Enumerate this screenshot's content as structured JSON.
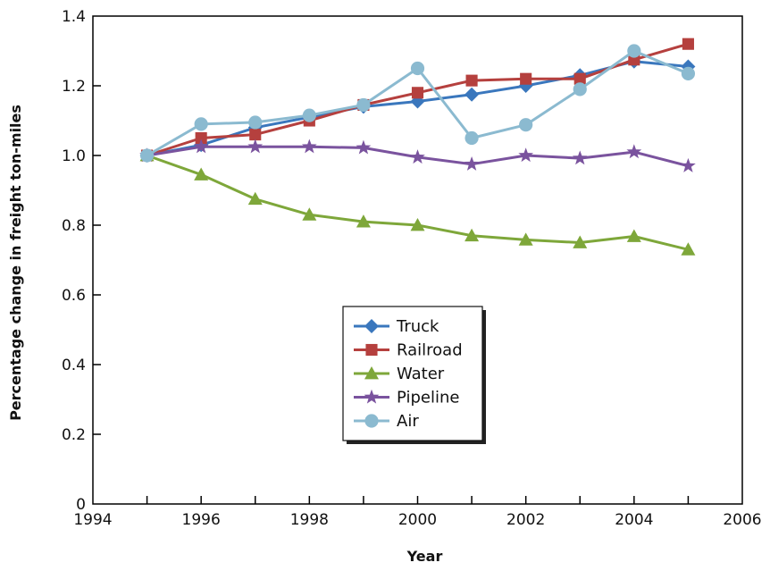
{
  "chart_data": {
    "type": "line",
    "title": "",
    "xlabel": "Year",
    "ylabel": "Percentage change in freight ton-miles",
    "xlim": [
      1994,
      2006
    ],
    "ylim": [
      0,
      1.4
    ],
    "x_ticks": [
      "1994",
      "1996",
      "1998",
      "2000",
      "2002",
      "2004",
      "2006"
    ],
    "y_ticks": [
      "0",
      "0.2",
      "0.4",
      "0.6",
      "0.8",
      "1.0",
      "1.2",
      "1.4"
    ],
    "grid": false,
    "legend_position": "center",
    "x": [
      1995,
      1996,
      1997,
      1998,
      1999,
      2000,
      2001,
      2002,
      2003,
      2004,
      2005
    ],
    "series": [
      {
        "name": "Truck",
        "color": "#3a77bd",
        "marker": "diamond",
        "values": [
          1.0,
          1.03,
          1.08,
          1.11,
          1.14,
          1.155,
          1.175,
          1.2,
          1.23,
          1.27,
          1.255
        ]
      },
      {
        "name": "Railroad",
        "color": "#b5403e",
        "marker": "square",
        "values": [
          1.0,
          1.05,
          1.06,
          1.1,
          1.145,
          1.18,
          1.215,
          1.22,
          1.22,
          1.275,
          1.32
        ]
      },
      {
        "name": "Water",
        "color": "#7ea73a",
        "marker": "triangle",
        "values": [
          1.0,
          0.945,
          0.875,
          0.83,
          0.81,
          0.8,
          0.77,
          0.758,
          0.75,
          0.768,
          0.73
        ]
      },
      {
        "name": "Pipeline",
        "color": "#7a539e",
        "marker": "star",
        "values": [
          1.0,
          1.025,
          1.025,
          1.025,
          1.022,
          0.995,
          0.975,
          1.0,
          0.992,
          1.01,
          0.97
        ]
      },
      {
        "name": "Air",
        "color": "#8bbad0",
        "marker": "circle",
        "values": [
          1.0,
          1.09,
          1.095,
          1.115,
          1.145,
          1.25,
          1.05,
          1.088,
          1.19,
          1.3,
          1.235
        ]
      }
    ]
  }
}
